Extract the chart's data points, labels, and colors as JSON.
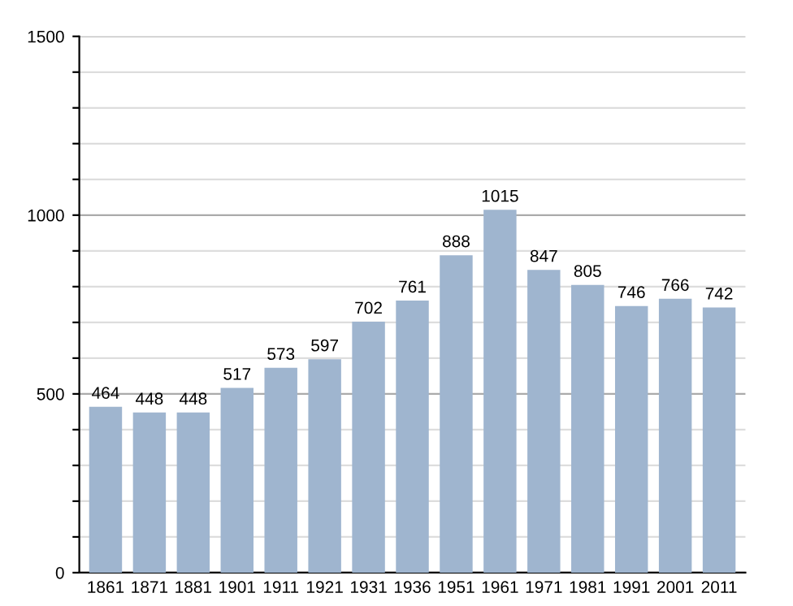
{
  "chart_data": {
    "type": "bar",
    "categories": [
      "1861",
      "1871",
      "1881",
      "1901",
      "1911",
      "1921",
      "1931",
      "1936",
      "1951",
      "1961",
      "1971",
      "1981",
      "1991",
      "2001",
      "2011"
    ],
    "values": [
      464,
      448,
      448,
      517,
      573,
      597,
      702,
      761,
      888,
      1015,
      847,
      805,
      746,
      766,
      742
    ],
    "color": "#9fb5cf",
    "ylim": [
      0,
      1500
    ],
    "yticks": [
      0,
      {
        "value": 100,
        "label": null
      },
      {
        "value": 200,
        "label": null
      },
      {
        "value": 300,
        "label": null
      },
      {
        "value": 400,
        "label": null
      },
      500,
      {
        "value": 600,
        "label": null
      },
      {
        "value": 700,
        "label": null
      },
      {
        "value": 800,
        "label": null
      },
      {
        "value": 900,
        "label": null
      },
      1000,
      {
        "value": 1100,
        "label": null
      },
      {
        "value": 1200,
        "label": null
      },
      {
        "value": 1300,
        "label": null
      },
      {
        "value": 1400,
        "label": null
      },
      1500
    ],
    "grid": "y",
    "data_labels": true
  }
}
